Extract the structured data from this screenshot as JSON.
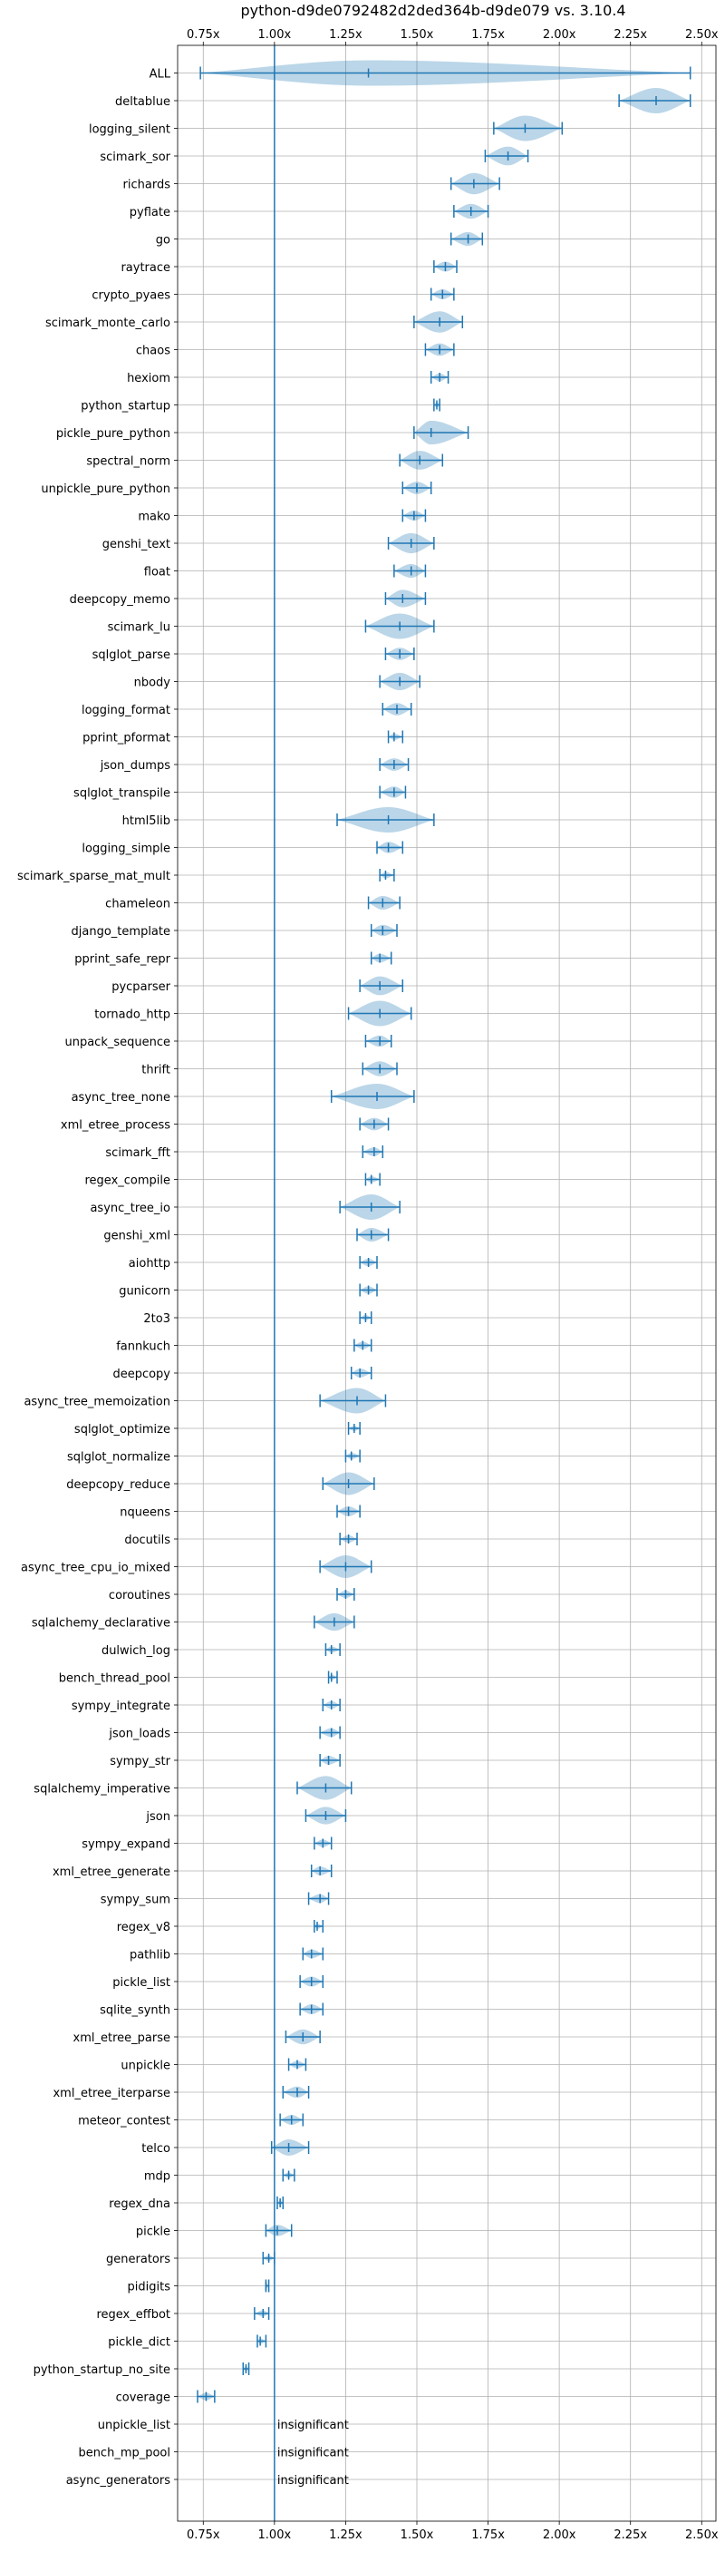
{
  "chart_data": {
    "type": "violin",
    "title": "python-d9de0792482d2ded364b-d9de079 vs. 3.10.4",
    "orientation": "horizontal",
    "xlim": [
      0.66,
      2.55
    ],
    "x_ticks": [
      0.75,
      1.0,
      1.25,
      1.5,
      1.75,
      2.0,
      2.25,
      2.5
    ],
    "x_tick_labels": [
      "0.75x",
      "1.00x",
      "1.25x",
      "1.50x",
      "1.75x",
      "2.00x",
      "2.25x",
      "2.50x"
    ],
    "reference_line": 1.0,
    "grid": true,
    "insignificant_label": "insignificant",
    "benchmarks": [
      {
        "name": "ALL",
        "min": 0.74,
        "median": 1.33,
        "max": 2.46
      },
      {
        "name": "deltablue",
        "min": 2.21,
        "median": 2.34,
        "max": 2.46
      },
      {
        "name": "logging_silent",
        "min": 1.77,
        "median": 1.88,
        "max": 2.01
      },
      {
        "name": "scimark_sor",
        "min": 1.74,
        "median": 1.82,
        "max": 1.89
      },
      {
        "name": "richards",
        "min": 1.62,
        "median": 1.7,
        "max": 1.79
      },
      {
        "name": "pyflate",
        "min": 1.63,
        "median": 1.69,
        "max": 1.75
      },
      {
        "name": "go",
        "min": 1.62,
        "median": 1.68,
        "max": 1.73
      },
      {
        "name": "raytrace",
        "min": 1.56,
        "median": 1.6,
        "max": 1.64
      },
      {
        "name": "crypto_pyaes",
        "min": 1.55,
        "median": 1.59,
        "max": 1.63
      },
      {
        "name": "scimark_monte_carlo",
        "min": 1.49,
        "median": 1.58,
        "max": 1.66
      },
      {
        "name": "chaos",
        "min": 1.53,
        "median": 1.58,
        "max": 1.63
      },
      {
        "name": "hexiom",
        "min": 1.55,
        "median": 1.58,
        "max": 1.61
      },
      {
        "name": "python_startup",
        "min": 1.56,
        "median": 1.57,
        "max": 1.58
      },
      {
        "name": "pickle_pure_python",
        "min": 1.49,
        "median": 1.55,
        "max": 1.68
      },
      {
        "name": "spectral_norm",
        "min": 1.44,
        "median": 1.51,
        "max": 1.59
      },
      {
        "name": "unpickle_pure_python",
        "min": 1.45,
        "median": 1.5,
        "max": 1.55
      },
      {
        "name": "mako",
        "min": 1.45,
        "median": 1.49,
        "max": 1.53
      },
      {
        "name": "genshi_text",
        "min": 1.4,
        "median": 1.48,
        "max": 1.56
      },
      {
        "name": "float",
        "min": 1.42,
        "median": 1.48,
        "max": 1.53
      },
      {
        "name": "deepcopy_memo",
        "min": 1.39,
        "median": 1.45,
        "max": 1.53
      },
      {
        "name": "scimark_lu",
        "min": 1.32,
        "median": 1.44,
        "max": 1.56
      },
      {
        "name": "sqlglot_parse",
        "min": 1.39,
        "median": 1.44,
        "max": 1.49
      },
      {
        "name": "nbody",
        "min": 1.37,
        "median": 1.44,
        "max": 1.51
      },
      {
        "name": "logging_format",
        "min": 1.38,
        "median": 1.43,
        "max": 1.48
      },
      {
        "name": "pprint_pformat",
        "min": 1.4,
        "median": 1.42,
        "max": 1.45
      },
      {
        "name": "json_dumps",
        "min": 1.37,
        "median": 1.42,
        "max": 1.47
      },
      {
        "name": "sqlglot_transpile",
        "min": 1.37,
        "median": 1.42,
        "max": 1.46
      },
      {
        "name": "html5lib",
        "min": 1.22,
        "median": 1.4,
        "max": 1.56
      },
      {
        "name": "logging_simple",
        "min": 1.36,
        "median": 1.4,
        "max": 1.45
      },
      {
        "name": "scimark_sparse_mat_mult",
        "min": 1.37,
        "median": 1.39,
        "max": 1.42
      },
      {
        "name": "chameleon",
        "min": 1.33,
        "median": 1.38,
        "max": 1.44
      },
      {
        "name": "django_template",
        "min": 1.34,
        "median": 1.38,
        "max": 1.43
      },
      {
        "name": "pprint_safe_repr",
        "min": 1.34,
        "median": 1.37,
        "max": 1.41
      },
      {
        "name": "pycparser",
        "min": 1.3,
        "median": 1.37,
        "max": 1.45
      },
      {
        "name": "tornado_http",
        "min": 1.26,
        "median": 1.37,
        "max": 1.48
      },
      {
        "name": "unpack_sequence",
        "min": 1.32,
        "median": 1.37,
        "max": 1.41
      },
      {
        "name": "thrift",
        "min": 1.31,
        "median": 1.37,
        "max": 1.43
      },
      {
        "name": "async_tree_none",
        "min": 1.2,
        "median": 1.36,
        "max": 1.49
      },
      {
        "name": "xml_etree_process",
        "min": 1.3,
        "median": 1.35,
        "max": 1.4
      },
      {
        "name": "scimark_fft",
        "min": 1.31,
        "median": 1.35,
        "max": 1.38
      },
      {
        "name": "regex_compile",
        "min": 1.32,
        "median": 1.34,
        "max": 1.37
      },
      {
        "name": "async_tree_io",
        "min": 1.23,
        "median": 1.34,
        "max": 1.44
      },
      {
        "name": "genshi_xml",
        "min": 1.29,
        "median": 1.34,
        "max": 1.4
      },
      {
        "name": "aiohttp",
        "min": 1.3,
        "median": 1.33,
        "max": 1.36
      },
      {
        "name": "gunicorn",
        "min": 1.3,
        "median": 1.33,
        "max": 1.36
      },
      {
        "name": "2to3",
        "min": 1.3,
        "median": 1.32,
        "max": 1.34
      },
      {
        "name": "fannkuch",
        "min": 1.28,
        "median": 1.31,
        "max": 1.34
      },
      {
        "name": "deepcopy",
        "min": 1.27,
        "median": 1.3,
        "max": 1.34
      },
      {
        "name": "async_tree_memoization",
        "min": 1.16,
        "median": 1.29,
        "max": 1.39
      },
      {
        "name": "sqlglot_optimize",
        "min": 1.26,
        "median": 1.28,
        "max": 1.3
      },
      {
        "name": "sqlglot_normalize",
        "min": 1.25,
        "median": 1.27,
        "max": 1.3
      },
      {
        "name": "deepcopy_reduce",
        "min": 1.17,
        "median": 1.26,
        "max": 1.35
      },
      {
        "name": "nqueens",
        "min": 1.22,
        "median": 1.26,
        "max": 1.3
      },
      {
        "name": "docutils",
        "min": 1.23,
        "median": 1.26,
        "max": 1.29
      },
      {
        "name": "async_tree_cpu_io_mixed",
        "min": 1.16,
        "median": 1.25,
        "max": 1.34
      },
      {
        "name": "coroutines",
        "min": 1.22,
        "median": 1.25,
        "max": 1.28
      },
      {
        "name": "sqlalchemy_declarative",
        "min": 1.14,
        "median": 1.21,
        "max": 1.28
      },
      {
        "name": "dulwich_log",
        "min": 1.18,
        "median": 1.2,
        "max": 1.23
      },
      {
        "name": "bench_thread_pool",
        "min": 1.19,
        "median": 1.2,
        "max": 1.22
      },
      {
        "name": "sympy_integrate",
        "min": 1.17,
        "median": 1.2,
        "max": 1.23
      },
      {
        "name": "json_loads",
        "min": 1.16,
        "median": 1.2,
        "max": 1.23
      },
      {
        "name": "sympy_str",
        "min": 1.16,
        "median": 1.19,
        "max": 1.23
      },
      {
        "name": "sqlalchemy_imperative",
        "min": 1.08,
        "median": 1.18,
        "max": 1.27
      },
      {
        "name": "json",
        "min": 1.11,
        "median": 1.18,
        "max": 1.25
      },
      {
        "name": "sympy_expand",
        "min": 1.14,
        "median": 1.17,
        "max": 1.2
      },
      {
        "name": "xml_etree_generate",
        "min": 1.13,
        "median": 1.16,
        "max": 1.2
      },
      {
        "name": "sympy_sum",
        "min": 1.12,
        "median": 1.16,
        "max": 1.19
      },
      {
        "name": "regex_v8",
        "min": 1.14,
        "median": 1.15,
        "max": 1.17
      },
      {
        "name": "pathlib",
        "min": 1.1,
        "median": 1.13,
        "max": 1.17
      },
      {
        "name": "pickle_list",
        "min": 1.09,
        "median": 1.13,
        "max": 1.17
      },
      {
        "name": "sqlite_synth",
        "min": 1.09,
        "median": 1.13,
        "max": 1.17
      },
      {
        "name": "xml_etree_parse",
        "min": 1.04,
        "median": 1.1,
        "max": 1.16
      },
      {
        "name": "unpickle",
        "min": 1.05,
        "median": 1.08,
        "max": 1.11
      },
      {
        "name": "xml_etree_iterparse",
        "min": 1.03,
        "median": 1.08,
        "max": 1.12
      },
      {
        "name": "meteor_contest",
        "min": 1.02,
        "median": 1.06,
        "max": 1.1
      },
      {
        "name": "telco",
        "min": 0.99,
        "median": 1.05,
        "max": 1.12
      },
      {
        "name": "mdp",
        "min": 1.03,
        "median": 1.05,
        "max": 1.07
      },
      {
        "name": "regex_dna",
        "min": 1.01,
        "median": 1.02,
        "max": 1.03
      },
      {
        "name": "pickle",
        "min": 0.97,
        "median": 1.01,
        "max": 1.06
      },
      {
        "name": "generators",
        "min": 0.96,
        "median": 0.98,
        "max": 1.0
      },
      {
        "name": "pidigits",
        "min": 0.97,
        "median": 0.97,
        "max": 0.98
      },
      {
        "name": "regex_effbot",
        "min": 0.93,
        "median": 0.96,
        "max": 0.98
      },
      {
        "name": "pickle_dict",
        "min": 0.94,
        "median": 0.95,
        "max": 0.97
      },
      {
        "name": "python_startup_no_site",
        "min": 0.89,
        "median": 0.9,
        "max": 0.91
      },
      {
        "name": "coverage",
        "min": 0.73,
        "median": 0.76,
        "max": 0.79
      },
      {
        "name": "unpickle_list",
        "insignificant": true
      },
      {
        "name": "bench_mp_pool",
        "insignificant": true
      },
      {
        "name": "async_generators",
        "insignificant": true
      }
    ]
  }
}
